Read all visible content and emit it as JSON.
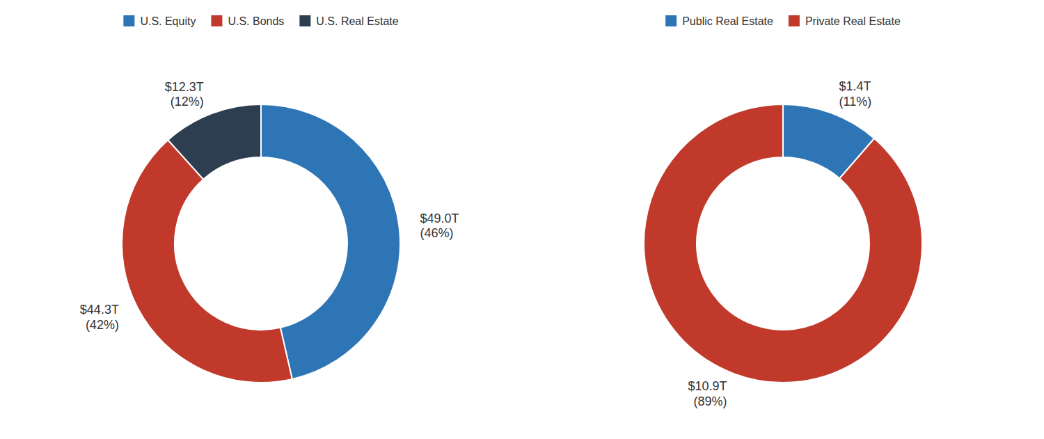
{
  "chart_data": [
    {
      "type": "pie",
      "categories": [
        "U.S. Equity",
        "U.S. Bonds",
        "U.S. Real Estate"
      ],
      "values": [
        49.0,
        44.3,
        12.3
      ],
      "value_labels": [
        "$49.0T\n(46%)",
        "$44.3T\n(42%)",
        "$12.3T\n(12%)"
      ],
      "colors": [
        "#2e75b6",
        "#c0392b",
        "#2c3e50"
      ],
      "legend": "top",
      "data_labels": true
    },
    {
      "type": "pie",
      "categories": [
        "Public Real Estate",
        "Private Real Estate"
      ],
      "values": [
        1.4,
        10.9
      ],
      "value_labels": [
        "$1.4T\n(11%)",
        "$10.9T\n(89%)"
      ],
      "colors": [
        "#2e75b6",
        "#c0392b"
      ],
      "legend": "top",
      "data_labels": true
    }
  ]
}
